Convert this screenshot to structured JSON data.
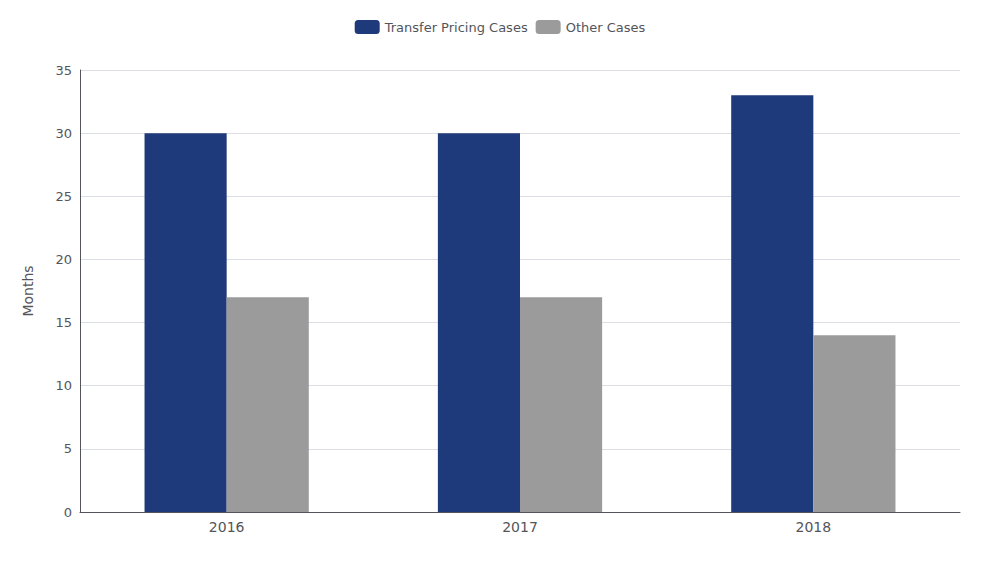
{
  "chart_data": {
    "type": "bar",
    "categories": [
      "2016",
      "2017",
      "2018"
    ],
    "series": [
      {
        "name": "Transfer Pricing Cases",
        "color": "#1F3A7A",
        "values": [
          30,
          30,
          33
        ]
      },
      {
        "name": "Other Cases",
        "color": "#9B9B9B",
        "values": [
          17,
          17,
          14
        ]
      }
    ],
    "ylabel": "Months",
    "ylim": [
      0,
      35
    ],
    "yticks": [
      0,
      5,
      10,
      15,
      20,
      25,
      30,
      35
    ],
    "grid": true,
    "legend": "top"
  }
}
